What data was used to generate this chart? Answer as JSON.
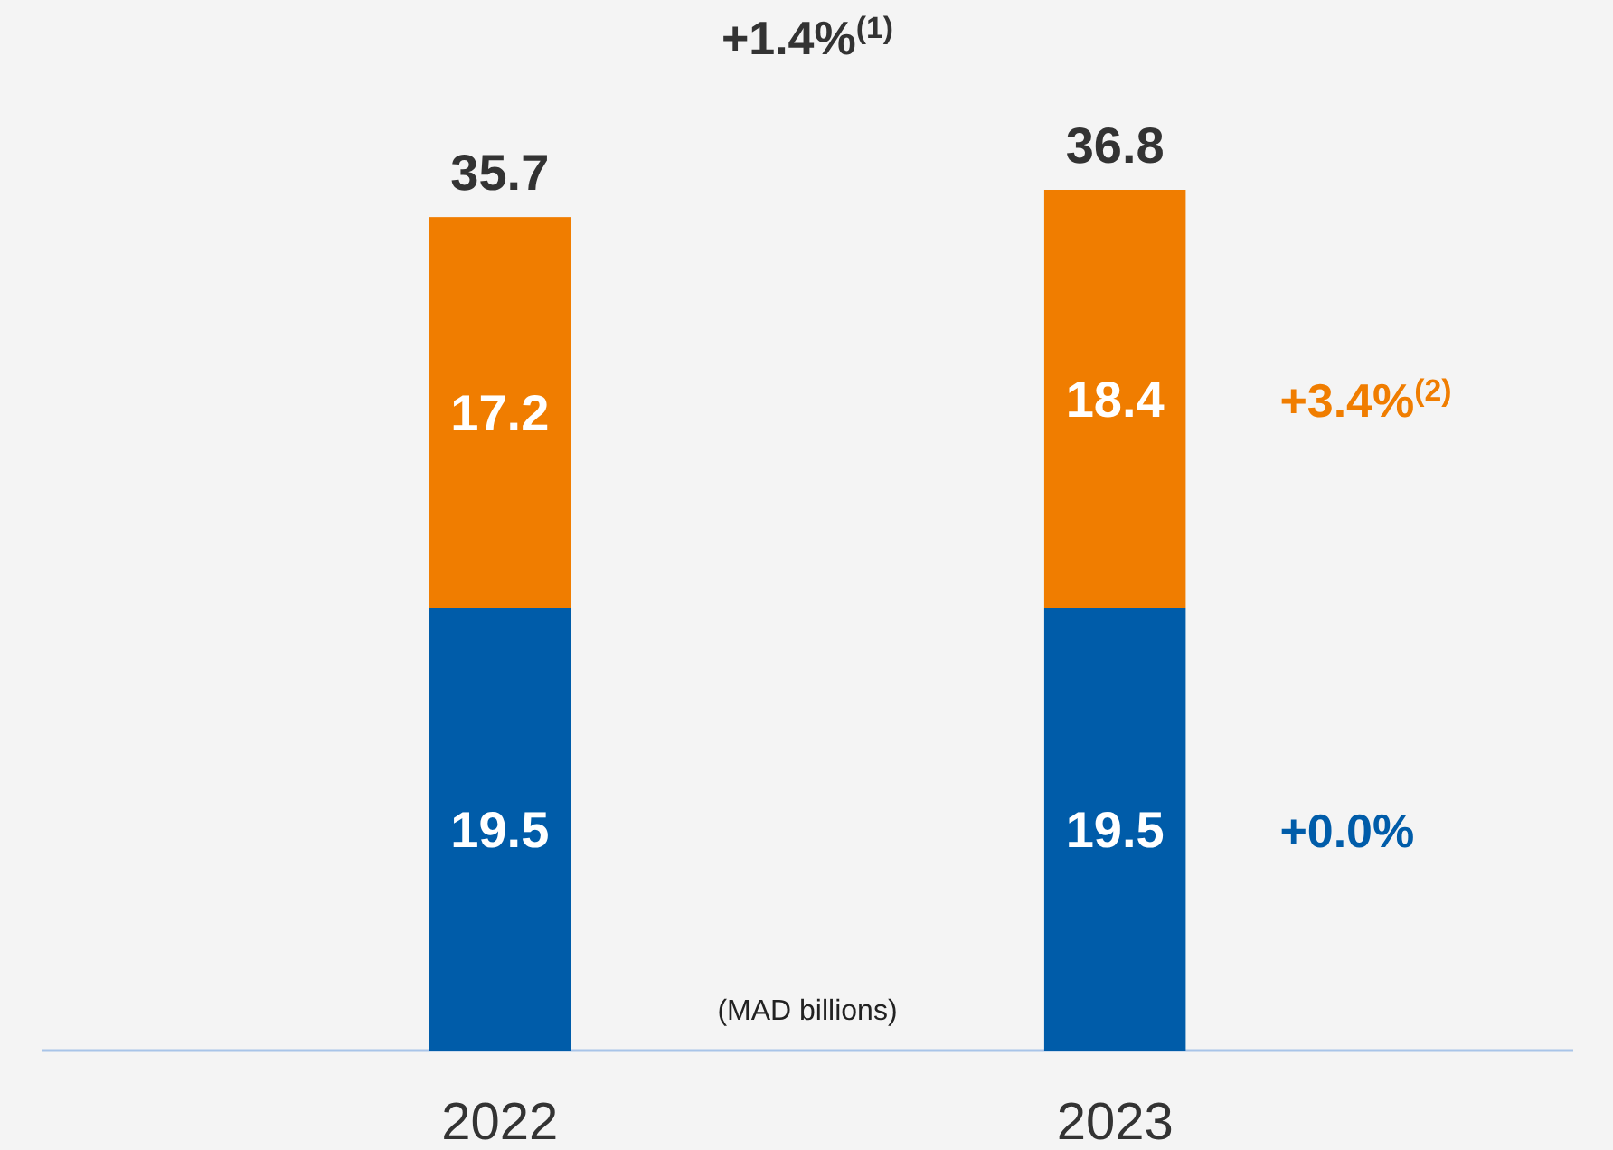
{
  "chart_data": {
    "type": "bar",
    "stacked": true,
    "data_labels": true,
    "categories": [
      "2022",
      "2023"
    ],
    "series": [
      {
        "color": "#005ca9",
        "values": [
          19.5,
          19.5
        ]
      },
      {
        "color": "#f07d00",
        "values": [
          17.2,
          18.4
        ]
      }
    ],
    "annotations": [
      {
        "text": "35.7",
        "x": "2022",
        "y": 36.7
      },
      {
        "text": "36.8",
        "x": "2023",
        "y": 37.9
      },
      "+1.4%$^{(1)}$",
      "+3.4%$^{(2)}$",
      "+0.0%",
      "(MAD billions)"
    ]
  }
}
